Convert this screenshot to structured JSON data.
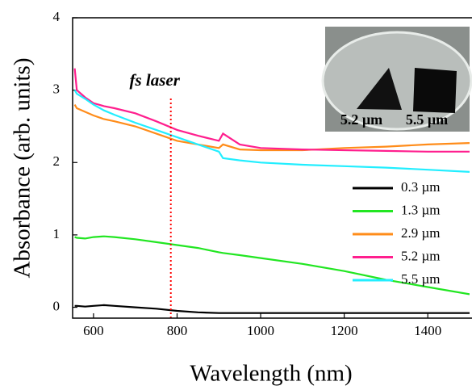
{
  "chart_data": {
    "type": "line",
    "xlabel": "Wavelength (nm)",
    "ylabel": "Absorbance (arb. units)",
    "x": [
      555,
      560,
      580,
      600,
      625,
      650,
      700,
      750,
      800,
      850,
      900,
      910,
      950,
      1000,
      1100,
      1200,
      1300,
      1400,
      1500
    ],
    "series": [
      {
        "name": "0.3 µm",
        "color": "#000000",
        "values": [
          0.02,
          0.02,
          0.01,
          0.02,
          0.03,
          0.02,
          0.0,
          -0.02,
          -0.05,
          -0.07,
          -0.08,
          -0.08,
          -0.08,
          -0.08,
          -0.08,
          -0.08,
          -0.08,
          -0.08,
          -0.08
        ]
      },
      {
        "name": "1.3 µm",
        "color": "#22e622",
        "values": [
          0.97,
          0.96,
          0.95,
          0.97,
          0.98,
          0.97,
          0.94,
          0.9,
          0.86,
          0.82,
          0.76,
          0.75,
          0.72,
          0.68,
          0.6,
          0.5,
          0.38,
          0.28,
          0.18
        ]
      },
      {
        "name": "2.9 µm",
        "color": "#ff8c1a",
        "values": [
          2.8,
          2.75,
          2.7,
          2.65,
          2.6,
          2.57,
          2.5,
          2.4,
          2.3,
          2.25,
          2.2,
          2.25,
          2.18,
          2.17,
          2.17,
          2.2,
          2.22,
          2.25,
          2.27
        ]
      },
      {
        "name": "5.2 µm",
        "color": "#ff1f8e",
        "values": [
          3.3,
          3.0,
          2.9,
          2.82,
          2.78,
          2.75,
          2.68,
          2.57,
          2.45,
          2.37,
          2.3,
          2.4,
          2.25,
          2.2,
          2.18,
          2.17,
          2.16,
          2.15,
          2.15
        ]
      },
      {
        "name": "5.5 µm",
        "color": "#22eeff",
        "values": [
          3.0,
          2.95,
          2.88,
          2.8,
          2.72,
          2.66,
          2.55,
          2.45,
          2.35,
          2.25,
          2.15,
          2.06,
          2.03,
          2.0,
          1.97,
          1.95,
          1.93,
          1.9,
          1.87
        ]
      }
    ],
    "annotations": [
      {
        "text": "fs laser",
        "x": 785,
        "color": "#ff0000"
      }
    ],
    "inset_labels": [
      "5.2 µm",
      "5.5 µm"
    ],
    "xlim": [
      550,
      1500
    ],
    "xticks": [
      600,
      800,
      1000,
      1200,
      1400
    ],
    "ylim": [
      -0.15,
      4
    ],
    "yticks": [
      0,
      1,
      2,
      3,
      4
    ],
    "grid": false
  }
}
